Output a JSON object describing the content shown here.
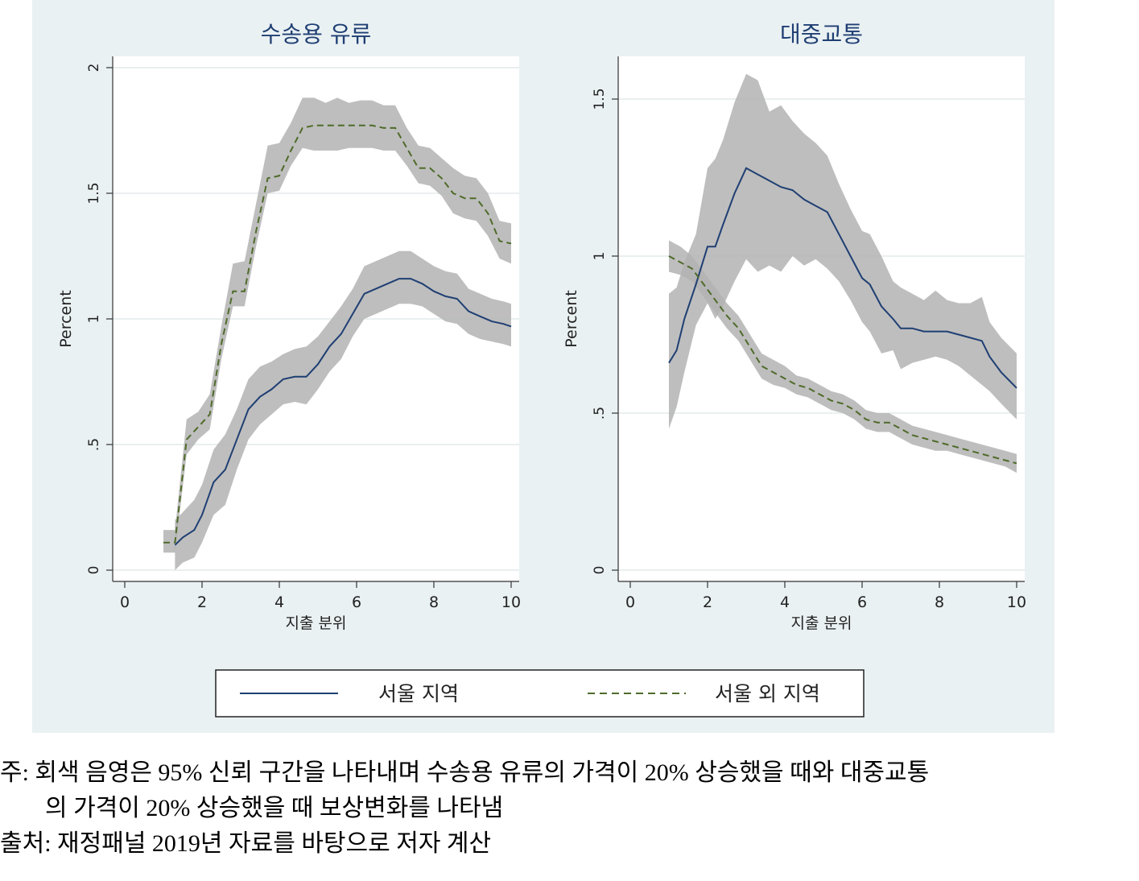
{
  "chart_data": [
    {
      "type": "area",
      "title": "수송용 유류",
      "xlabel": "지출 분위",
      "ylabel": "Percent",
      "xlim": [
        0,
        10
      ],
      "ylim": [
        0,
        2
      ],
      "xticks": [
        "0",
        "2",
        "4",
        "6",
        "8",
        "10"
      ],
      "yticks": [
        "0",
        ".5",
        "1",
        "1.5",
        "2"
      ],
      "ytick_values": [
        0,
        0.5,
        1,
        1.5,
        2
      ],
      "xtick_values": [
        0,
        2,
        4,
        6,
        8,
        10
      ],
      "grid": true,
      "x": [
        1.0,
        1.5,
        2.0,
        2.5,
        3.0,
        3.5,
        4.0,
        4.5,
        5.0,
        5.5,
        6.0,
        6.5,
        7.0,
        7.5,
        8.0,
        8.5,
        9.0,
        9.5,
        10.0
      ],
      "series": [
        {
          "name": "서울 지역",
          "style": "solid",
          "color": "#1f3f73",
          "x": [
            1.3,
            1.5,
            1.8,
            2.0,
            2.3,
            2.6,
            2.9,
            3.2,
            3.5,
            3.8,
            4.1,
            4.4,
            4.7,
            5.0,
            5.3,
            5.6,
            5.9,
            6.2,
            6.5,
            6.8,
            7.1,
            7.4,
            7.7,
            8.0,
            8.3,
            8.6,
            8.9,
            9.2,
            9.5,
            9.8,
            10.0
          ],
          "values": [
            0.1,
            0.13,
            0.16,
            0.22,
            0.35,
            0.4,
            0.52,
            0.64,
            0.69,
            0.72,
            0.76,
            0.77,
            0.77,
            0.82,
            0.89,
            0.94,
            1.02,
            1.1,
            1.12,
            1.14,
            1.16,
            1.16,
            1.14,
            1.11,
            1.09,
            1.08,
            1.03,
            1.01,
            0.99,
            0.98,
            0.97
          ],
          "ci_lower": [
            0.0,
            0.03,
            0.05,
            0.11,
            0.22,
            0.26,
            0.4,
            0.52,
            0.58,
            0.62,
            0.66,
            0.67,
            0.66,
            0.72,
            0.79,
            0.84,
            0.93,
            1.0,
            1.02,
            1.04,
            1.06,
            1.06,
            1.05,
            1.02,
            0.99,
            0.98,
            0.94,
            0.92,
            0.91,
            0.9,
            0.89
          ],
          "ci_upper": [
            0.2,
            0.23,
            0.28,
            0.34,
            0.48,
            0.54,
            0.64,
            0.76,
            0.81,
            0.83,
            0.86,
            0.88,
            0.89,
            0.93,
            0.99,
            1.05,
            1.12,
            1.21,
            1.23,
            1.25,
            1.27,
            1.27,
            1.24,
            1.21,
            1.19,
            1.18,
            1.12,
            1.1,
            1.08,
            1.07,
            1.06
          ]
        },
        {
          "name": "서울 외 지역",
          "style": "dashed",
          "color": "#4f6b2a",
          "x": [
            1.0,
            1.3,
            1.6,
            1.9,
            2.2,
            2.5,
            2.8,
            3.1,
            3.4,
            3.7,
            4.0,
            4.3,
            4.6,
            4.9,
            5.2,
            5.5,
            5.8,
            6.1,
            6.4,
            6.7,
            7.0,
            7.3,
            7.6,
            7.9,
            8.2,
            8.5,
            8.8,
            9.1,
            9.4,
            9.7,
            10.0
          ],
          "values": [
            0.11,
            0.11,
            0.52,
            0.57,
            0.62,
            0.9,
            1.11,
            1.11,
            1.35,
            1.56,
            1.57,
            1.67,
            1.76,
            1.77,
            1.77,
            1.77,
            1.77,
            1.77,
            1.77,
            1.76,
            1.76,
            1.68,
            1.6,
            1.6,
            1.56,
            1.5,
            1.48,
            1.48,
            1.42,
            1.31,
            1.3
          ],
          "ci_lower": [
            0.07,
            0.07,
            0.46,
            0.52,
            0.56,
            0.84,
            1.05,
            1.05,
            1.29,
            1.5,
            1.51,
            1.61,
            1.68,
            1.67,
            1.67,
            1.67,
            1.68,
            1.68,
            1.68,
            1.67,
            1.67,
            1.61,
            1.54,
            1.53,
            1.49,
            1.42,
            1.4,
            1.39,
            1.33,
            1.24,
            1.22
          ],
          "ci_upper": [
            0.16,
            0.16,
            0.6,
            0.63,
            0.7,
            0.97,
            1.22,
            1.23,
            1.46,
            1.69,
            1.7,
            1.78,
            1.88,
            1.88,
            1.86,
            1.88,
            1.86,
            1.87,
            1.87,
            1.85,
            1.85,
            1.76,
            1.69,
            1.68,
            1.64,
            1.6,
            1.57,
            1.56,
            1.5,
            1.39,
            1.38
          ]
        }
      ]
    },
    {
      "type": "area",
      "title": "대중교통",
      "xlabel": "지출 분위",
      "ylabel": "Percent",
      "xlim": [
        0,
        10
      ],
      "ylim": [
        0,
        1.6
      ],
      "xticks": [
        "0",
        "2",
        "4",
        "6",
        "8",
        "10"
      ],
      "yticks": [
        "0",
        ".5",
        "1",
        "1.5"
      ],
      "ytick_values": [
        0,
        0.5,
        1,
        1.5
      ],
      "xtick_values": [
        0,
        2,
        4,
        6,
        8,
        10
      ],
      "grid": true,
      "series": [
        {
          "name": "서울 지역",
          "style": "solid",
          "color": "#1f3f73",
          "x": [
            1.0,
            1.2,
            1.4,
            1.7,
            2.0,
            2.2,
            2.4,
            2.7,
            3.0,
            3.3,
            3.6,
            3.9,
            4.2,
            4.5,
            4.8,
            5.1,
            5.4,
            5.7,
            6.0,
            6.2,
            6.5,
            6.8,
            7.0,
            7.3,
            7.6,
            7.9,
            8.2,
            8.5,
            8.8,
            9.1,
            9.3,
            9.6,
            10.0
          ],
          "values": [
            0.66,
            0.7,
            0.8,
            0.91,
            1.03,
            1.03,
            1.1,
            1.2,
            1.28,
            1.26,
            1.24,
            1.22,
            1.21,
            1.18,
            1.16,
            1.14,
            1.07,
            1.0,
            0.93,
            0.91,
            0.84,
            0.8,
            0.77,
            0.77,
            0.76,
            0.76,
            0.76,
            0.75,
            0.74,
            0.73,
            0.68,
            0.63,
            0.58
          ],
          "ci_lower": [
            0.45,
            0.52,
            0.63,
            0.78,
            0.85,
            0.8,
            0.84,
            0.92,
            0.99,
            0.95,
            0.97,
            0.95,
            1.0,
            0.97,
            0.99,
            0.96,
            0.92,
            0.86,
            0.79,
            0.76,
            0.69,
            0.7,
            0.64,
            0.66,
            0.67,
            0.68,
            0.67,
            0.65,
            0.62,
            0.59,
            0.57,
            0.53,
            0.48
          ],
          "ci_upper": [
            0.88,
            0.9,
            0.98,
            1.07,
            1.28,
            1.31,
            1.37,
            1.49,
            1.58,
            1.56,
            1.46,
            1.48,
            1.43,
            1.39,
            1.36,
            1.32,
            1.23,
            1.15,
            1.08,
            1.07,
            1.0,
            0.92,
            0.9,
            0.88,
            0.86,
            0.89,
            0.86,
            0.85,
            0.85,
            0.87,
            0.79,
            0.74,
            0.69
          ]
        },
        {
          "name": "서울 외 지역",
          "style": "dashed",
          "color": "#4f6b2a",
          "x": [
            1.0,
            1.3,
            1.6,
            1.9,
            2.2,
            2.5,
            2.8,
            3.1,
            3.4,
            3.7,
            4.0,
            4.3,
            4.6,
            4.9,
            5.2,
            5.5,
            5.8,
            6.1,
            6.4,
            6.7,
            7.0,
            7.3,
            7.6,
            7.9,
            8.2,
            8.5,
            8.8,
            9.1,
            9.4,
            9.7,
            10.0
          ],
          "values": [
            1.0,
            0.98,
            0.96,
            0.91,
            0.86,
            0.81,
            0.77,
            0.71,
            0.65,
            0.63,
            0.61,
            0.59,
            0.58,
            0.56,
            0.54,
            0.53,
            0.51,
            0.48,
            0.47,
            0.47,
            0.45,
            0.43,
            0.42,
            0.41,
            0.4,
            0.39,
            0.38,
            0.37,
            0.36,
            0.35,
            0.34
          ],
          "ci_lower": [
            0.95,
            0.94,
            0.92,
            0.87,
            0.82,
            0.77,
            0.73,
            0.67,
            0.61,
            0.59,
            0.58,
            0.56,
            0.55,
            0.53,
            0.51,
            0.5,
            0.48,
            0.45,
            0.44,
            0.44,
            0.42,
            0.4,
            0.39,
            0.38,
            0.38,
            0.37,
            0.36,
            0.35,
            0.34,
            0.33,
            0.31
          ],
          "ci_upper": [
            1.05,
            1.03,
            1.0,
            0.95,
            0.9,
            0.85,
            0.81,
            0.75,
            0.69,
            0.67,
            0.65,
            0.62,
            0.61,
            0.59,
            0.57,
            0.56,
            0.54,
            0.51,
            0.5,
            0.5,
            0.48,
            0.46,
            0.45,
            0.44,
            0.43,
            0.42,
            0.41,
            0.4,
            0.39,
            0.38,
            0.37
          ]
        }
      ]
    }
  ],
  "legend": {
    "items": [
      {
        "label": "서울 지역",
        "style": "solid",
        "color": "#1f3f73"
      },
      {
        "label": "서울 외 지역",
        "style": "dashed",
        "color": "#4f6b2a"
      }
    ]
  },
  "notes": {
    "line1": "주: 회색 음영은 95% 신뢰 구간을 나타내며 수송용 유류의 가격이 20% 상승했을 때와 대중교통",
    "line2": "의 가격이 20% 상승했을 때 보상변화를 나타냄",
    "line3": "출처: 재정패널 2019년 자료를 바탕으로 저자 계산"
  },
  "colors": {
    "panel_background": "#eaf1f3",
    "plot_background": "#ffffff",
    "ci_band": "#b3b3b3"
  }
}
